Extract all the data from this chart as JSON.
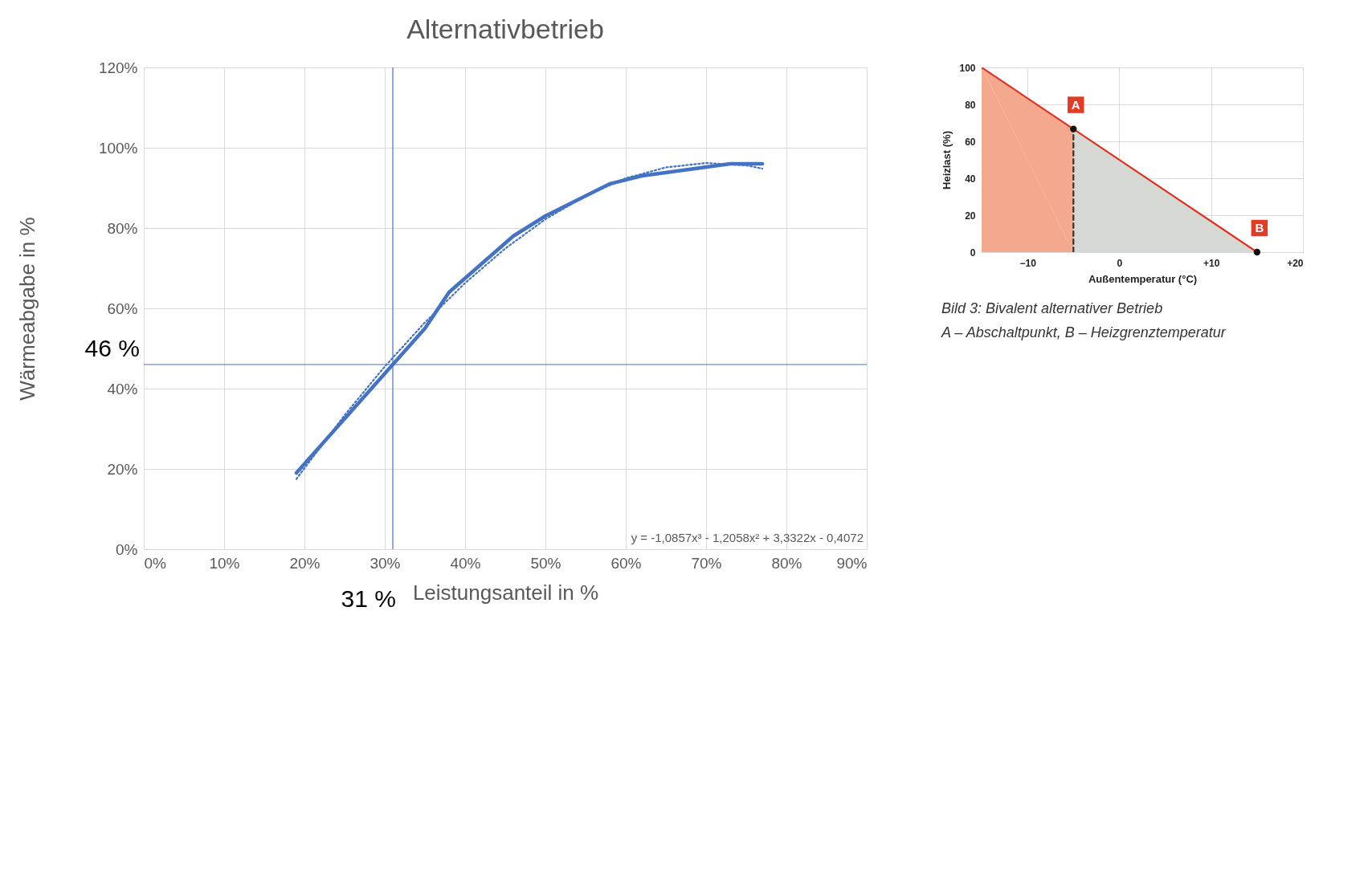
{
  "chart_data": [
    {
      "type": "line",
      "title": "Alternativbetrieb",
      "xlabel": "Leistungsanteil in %",
      "ylabel": "Wärmeabgabe in %",
      "xlim": [
        0,
        90
      ],
      "ylim": [
        0,
        120
      ],
      "xticks": [
        {
          "value": 0,
          "label": "0%"
        },
        {
          "value": 10,
          "label": "10%"
        },
        {
          "value": 20,
          "label": "20%"
        },
        {
          "value": 30,
          "label": "30%"
        },
        {
          "value": 40,
          "label": "40%"
        },
        {
          "value": 50,
          "label": "50%"
        },
        {
          "value": 60,
          "label": "60%"
        },
        {
          "value": 70,
          "label": "70%"
        },
        {
          "value": 80,
          "label": "80%"
        },
        {
          "value": 90,
          "label": "90%"
        }
      ],
      "yticks": [
        {
          "value": 0,
          "label": "0%"
        },
        {
          "value": 20,
          "label": "20%"
        },
        {
          "value": 40,
          "label": "40%"
        },
        {
          "value": 60,
          "label": "60%"
        },
        {
          "value": 80,
          "label": "80%"
        },
        {
          "value": 100,
          "label": "100%"
        },
        {
          "value": 120,
          "label": "120%"
        }
      ],
      "grid": true,
      "series": [
        {
          "color": "#4472c4",
          "line_style": "solid",
          "x": [
            19,
            35,
            38,
            46,
            50,
            58,
            62,
            73,
            77
          ],
          "values": [
            19,
            55,
            64,
            78,
            83,
            91,
            93,
            96,
            96
          ]
        },
        {
          "color": "#4472c4",
          "line_style": "dotted",
          "x": [
            19,
            25,
            30,
            35,
            40,
            45,
            50,
            55,
            60,
            65,
            70,
            75,
            77
          ],
          "values": [
            17.5,
            33.4,
            45.5,
            56.5,
            66.3,
            74.9,
            82.2,
            88.0,
            92.4,
            95.1,
            96.2,
            95.6,
            94.8
          ]
        }
      ],
      "ref_lines": [
        {
          "axis": "x",
          "value": 31,
          "label": "31 %",
          "color": "#4472c4"
        },
        {
          "axis": "y",
          "value": 46,
          "label": "46 %",
          "color": "#4472c4"
        }
      ],
      "annotations": [
        "y = -1,0857x³ - 1,2058x² + 3,3322x - 0,4072"
      ]
    },
    {
      "type": "area",
      "xlabel": "Außentemperatur (°C)",
      "ylabel": "Heizlast (%)",
      "xlim": [
        -15,
        20
      ],
      "ylim": [
        0,
        100
      ],
      "xticks": [
        -10,
        0,
        {
          "value": 10,
          "label": "+10"
        },
        {
          "value": 20,
          "label": "+20"
        }
      ],
      "yticks": [
        0,
        20,
        40,
        60,
        80,
        100
      ],
      "grid": true,
      "series": [
        {
          "color": "#f4a88e",
          "x": [
            -15,
            -5
          ],
          "values": [
            100,
            66.7
          ]
        },
        {
          "color": "#d5d8d3",
          "x": [
            -5,
            15
          ],
          "values": [
            66.7,
            0
          ]
        },
        {
          "type": "line",
          "color": "#e0301e",
          "line_style": "solid",
          "x": [
            -15,
            15
          ],
          "values": [
            100,
            0
          ]
        },
        {
          "type": "line",
          "color": "#333333",
          "line_style": "dashed",
          "x": [
            -5,
            -5
          ],
          "values": [
            0,
            66.7
          ]
        },
        {
          "type": "scatter",
          "color": "#111111",
          "x": [
            -5,
            15
          ],
          "values": [
            66.7,
            0
          ]
        }
      ],
      "annotations": [
        {
          "text": "A",
          "x": -5,
          "y": 66.7
        },
        {
          "text": "B",
          "x": 15,
          "y": 0
        },
        "Bild 3: Bivalent alternativer Betrieb",
        "A – Abschaltpunkt, B – Heizgrenztemperatur"
      ]
    }
  ]
}
